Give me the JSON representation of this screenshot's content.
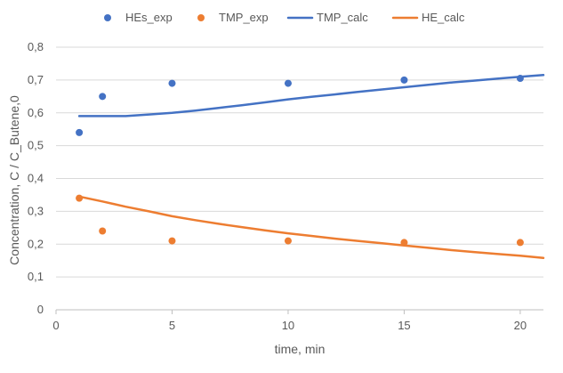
{
  "chart_data": {
    "type": "scatter",
    "title": "",
    "xlabel": "time, min",
    "ylabel": "Concentration, C / C_Butene,0",
    "xlim": [
      0,
      21
    ],
    "ylim": [
      0,
      0.8
    ],
    "x_ticks": [
      0,
      5,
      10,
      15,
      20
    ],
    "y_ticks": [
      0,
      0.1,
      0.2,
      0.3,
      0.4,
      0.5,
      0.6,
      0.7,
      0.8
    ],
    "x_tick_labels": [
      "0",
      "5",
      "10",
      "15",
      "20"
    ],
    "y_tick_labels": [
      "0",
      "0,1",
      "0,2",
      "0,3",
      "0,4",
      "0,5",
      "0,6",
      "0,7",
      "0,8"
    ],
    "grid": "horizontal",
    "legend_position": "top",
    "series": [
      {
        "name": "HEs_exp",
        "kind": "scatter",
        "color": "#4472C4",
        "x": [
          1,
          2,
          5,
          10,
          15,
          20
        ],
        "y": [
          0.54,
          0.65,
          0.69,
          0.69,
          0.7,
          0.705
        ]
      },
      {
        "name": "TMP_exp",
        "kind": "scatter",
        "color": "#ED7D31",
        "x": [
          1,
          2,
          5,
          10,
          15,
          20
        ],
        "y": [
          0.34,
          0.24,
          0.21,
          0.21,
          0.205,
          0.205
        ]
      },
      {
        "name": "TMP_calc",
        "kind": "line",
        "color": "#4472C4",
        "x": [
          1,
          2,
          3,
          4,
          5,
          6,
          7,
          8,
          9,
          10,
          11,
          12,
          13,
          14,
          15,
          16,
          17,
          18,
          19,
          20,
          21
        ],
        "y": [
          0.59,
          0.59,
          0.59,
          0.595,
          0.6,
          0.607,
          0.615,
          0.623,
          0.632,
          0.641,
          0.649,
          0.656,
          0.664,
          0.671,
          0.678,
          0.685,
          0.692,
          0.698,
          0.704,
          0.71,
          0.715
        ]
      },
      {
        "name": "HE_calc",
        "kind": "line",
        "color": "#ED7D31",
        "x": [
          1,
          2,
          3,
          4,
          5,
          6,
          7,
          8,
          9,
          10,
          11,
          12,
          13,
          14,
          15,
          16,
          17,
          18,
          19,
          20,
          21
        ],
        "y": [
          0.345,
          0.33,
          0.314,
          0.3,
          0.285,
          0.273,
          0.262,
          0.252,
          0.242,
          0.233,
          0.225,
          0.217,
          0.21,
          0.203,
          0.196,
          0.189,
          0.182,
          0.176,
          0.17,
          0.165,
          0.158
        ]
      }
    ]
  }
}
